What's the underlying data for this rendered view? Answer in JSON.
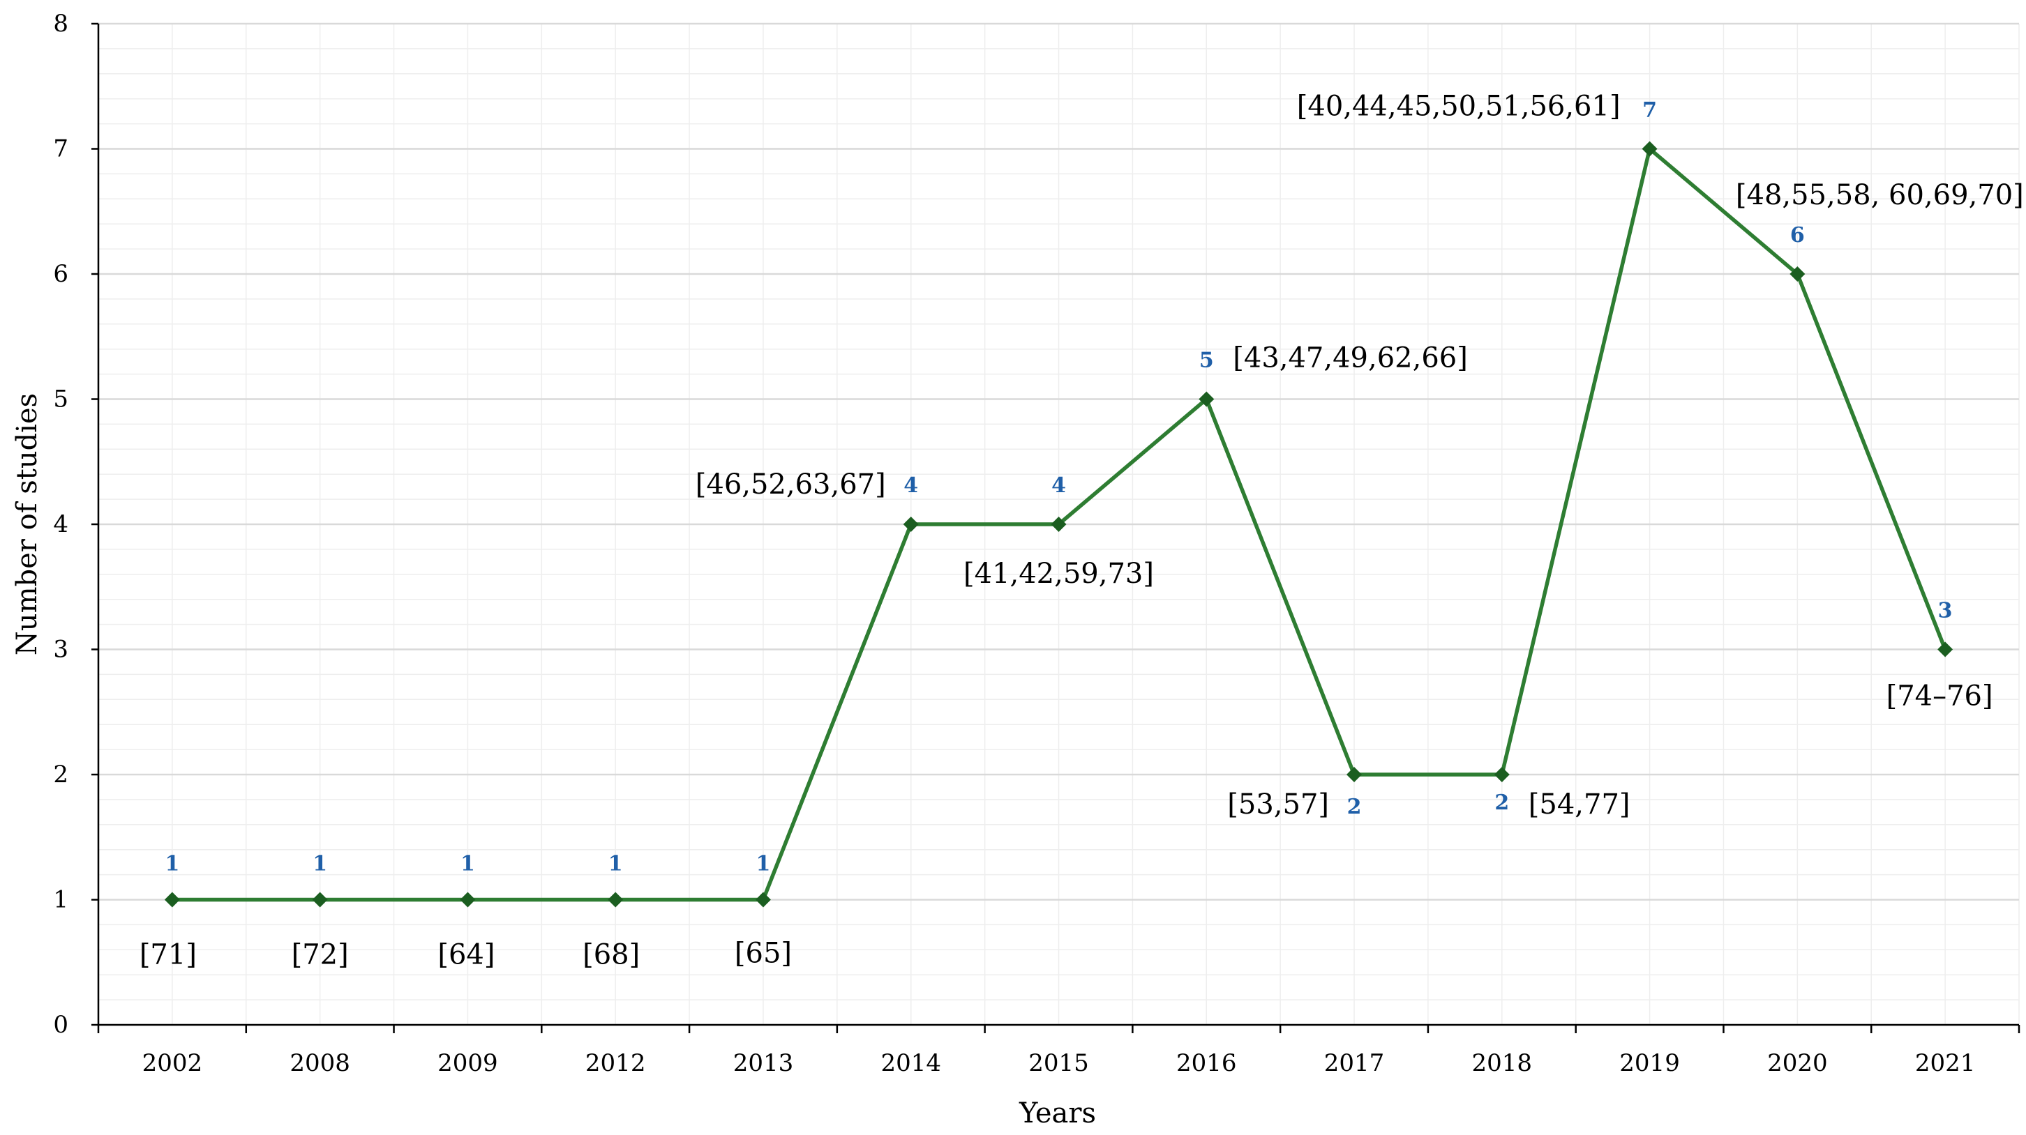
{
  "chart_data": {
    "type": "line",
    "categories": [
      "2002",
      "2008",
      "2009",
      "2012",
      "2013",
      "2014",
      "2015",
      "2016",
      "2017",
      "2018",
      "2019",
      "2020",
      "2021"
    ],
    "values": [
      1,
      1,
      1,
      1,
      1,
      4,
      4,
      5,
      2,
      2,
      7,
      6,
      3
    ],
    "data_labels": [
      "1",
      "1",
      "1",
      "1",
      "1",
      "4",
      "4",
      "5",
      "2",
      "2",
      "7",
      "6",
      "3"
    ],
    "reference_labels": [
      "[71]",
      "[72]",
      "[64]",
      "[68]",
      "[65]",
      "[46,52,63,67]",
      "[41,42,59,73]",
      "[43,47,49,62,66]",
      "[53,57]",
      "[54,77]",
      "[40,44,45,50,51,56,61]",
      "[48,55,58, 60,69,70]",
      "[74–76]"
    ],
    "xlabel": "Years",
    "ylabel": "Number of studies",
    "ylim": [
      0,
      8
    ],
    "yticks": [
      "0",
      "1",
      "2",
      "3",
      "4",
      "5",
      "6",
      "7",
      "8"
    ],
    "grid": true,
    "minor_grid": true,
    "legend": "none",
    "colors": {
      "line": "#2e7d32",
      "marker": "#1b5e20",
      "value_label": "#1f5fa8",
      "major_grid": "#d9d9d9",
      "minor_grid": "#eeeeee",
      "axis": "#000000"
    }
  }
}
